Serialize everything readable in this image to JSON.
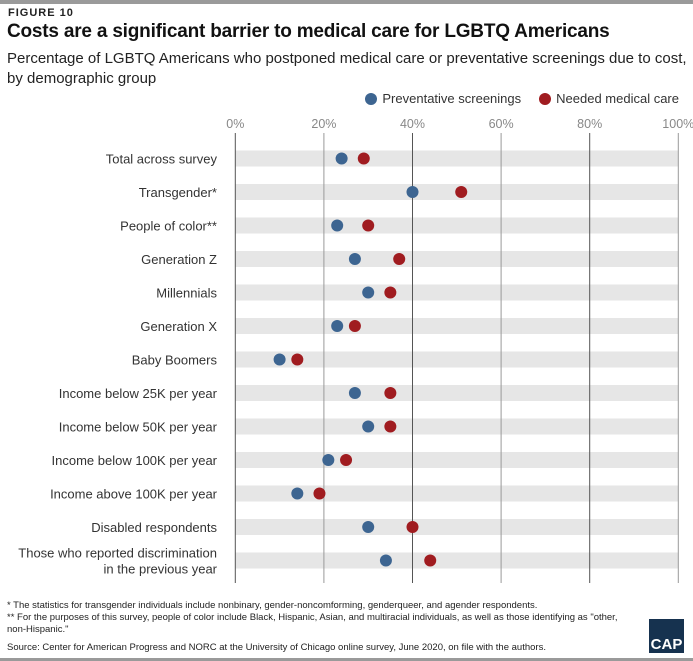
{
  "figure_label": "FIGURE 10",
  "chart_data": {
    "type": "scatter",
    "title": "Costs are a significant barrier to medical care for LGBTQ Americans",
    "subtitle": "Percentage of LGBTQ Americans who postponed medical care or preventative screenings due to cost, by demographic group",
    "xlim": [
      0,
      100
    ],
    "xticks": [
      "0%",
      "20%",
      "40%",
      "60%",
      "80%",
      "100%"
    ],
    "legend_position": "top-right",
    "categories": [
      "Total across survey",
      "Transgender*",
      "People of color**",
      "Generation Z",
      "Millennials",
      "Generation X",
      "Baby Boomers",
      "Income below 25K per year",
      "Income below 50K per year",
      "Income below 100K per year",
      "Income above 100K per year",
      "Disabled respondents",
      "Those who reported discrimination in the previous year"
    ],
    "series": [
      {
        "name": "Preventative screenings",
        "color": "#3d6591",
        "values": [
          24,
          40,
          23,
          27,
          30,
          23,
          10,
          27,
          30,
          21,
          14,
          30,
          34
        ]
      },
      {
        "name": "Needed medical care",
        "color": "#a01c20",
        "values": [
          29,
          51,
          30,
          37,
          35,
          27,
          14,
          35,
          35,
          25,
          19,
          40,
          44
        ]
      }
    ]
  },
  "notes": [
    "* The statistics for transgender individuals include nonbinary, gender-noncomforming, genderqueer, and agender respondents.",
    "** For the purposes of this survey, people of color include Black, Hispanic, Asian, and multiracial individuals, as well as those identifying as \"other, non-Hispanic.\""
  ],
  "source": "Source: Center for American Progress and NORC at the University of Chicago online survey, June 2020, on file with the authors.",
  "logo": "CAP"
}
